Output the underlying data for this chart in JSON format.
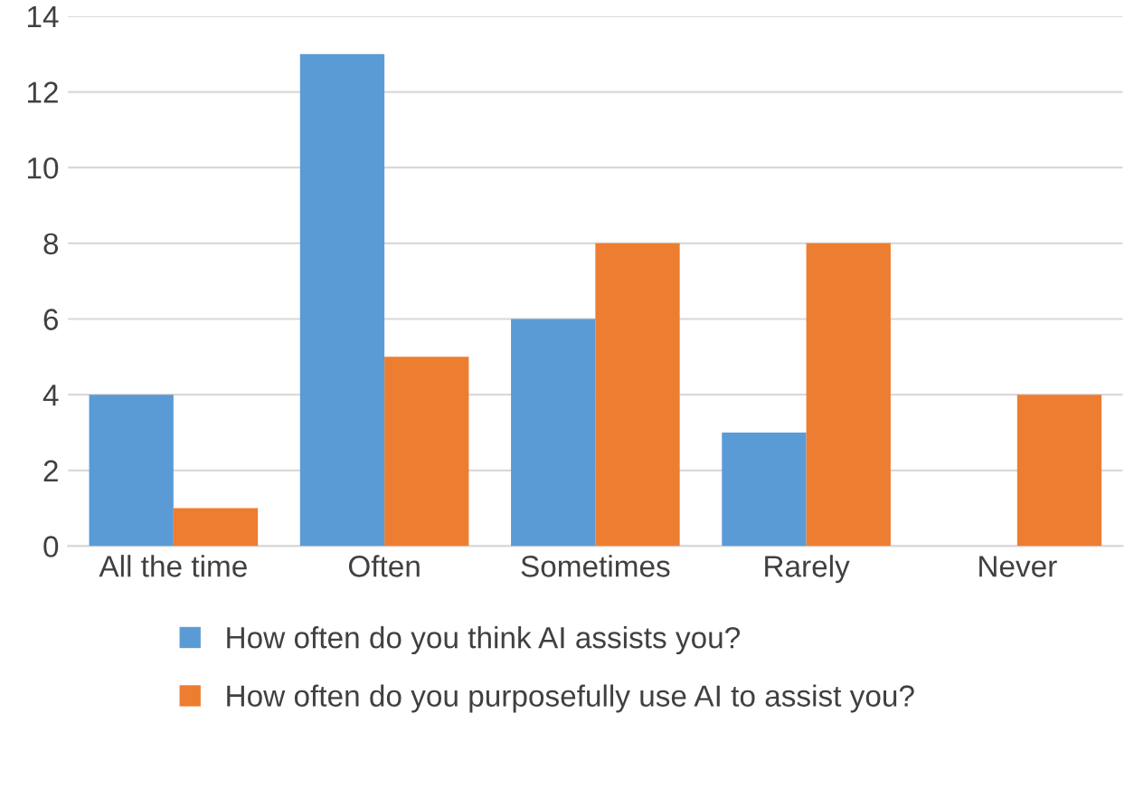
{
  "chart_data": {
    "type": "bar",
    "categories": [
      "All the time",
      "Often",
      "Sometimes",
      "Rarely",
      "Never"
    ],
    "series": [
      {
        "name": "How often do you think AI assists you?",
        "color": "#5b9bd5",
        "values": [
          4,
          13,
          6,
          3,
          0
        ]
      },
      {
        "name": "How often do you purposefully use AI to assist you?",
        "color": "#ed7d31",
        "values": [
          1,
          5,
          8,
          8,
          4
        ]
      }
    ],
    "ylim": [
      0,
      14
    ],
    "yticks": [
      0,
      2,
      4,
      6,
      8,
      10,
      12,
      14
    ],
    "grid": "y",
    "legend": "bottom"
  }
}
